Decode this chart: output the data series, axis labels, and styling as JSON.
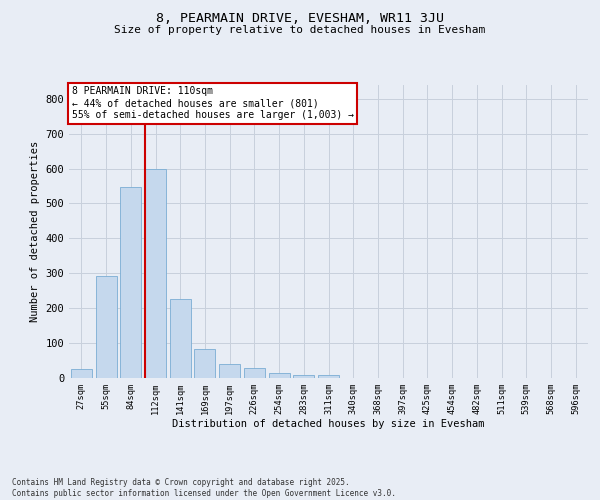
{
  "title1": "8, PEARMAIN DRIVE, EVESHAM, WR11 3JU",
  "title2": "Size of property relative to detached houses in Evesham",
  "xlabel": "Distribution of detached houses by size in Evesham",
  "ylabel": "Number of detached properties",
  "categories": [
    "27sqm",
    "55sqm",
    "84sqm",
    "112sqm",
    "141sqm",
    "169sqm",
    "197sqm",
    "226sqm",
    "254sqm",
    "283sqm",
    "311sqm",
    "340sqm",
    "368sqm",
    "397sqm",
    "425sqm",
    "454sqm",
    "482sqm",
    "511sqm",
    "539sqm",
    "568sqm",
    "596sqm"
  ],
  "values": [
    25,
    292,
    547,
    600,
    225,
    83,
    38,
    27,
    12,
    8,
    7,
    0,
    0,
    0,
    0,
    0,
    0,
    0,
    0,
    0,
    0
  ],
  "bar_color": "#c5d8ed",
  "bar_edge_color": "#7aadd4",
  "vline_index": 3,
  "vline_color": "#cc0000",
  "annotation_text": "8 PEARMAIN DRIVE: 110sqm\n← 44% of detached houses are smaller (801)\n55% of semi-detached houses are larger (1,003) →",
  "ylim": [
    0,
    840
  ],
  "yticks": [
    0,
    100,
    200,
    300,
    400,
    500,
    600,
    700,
    800
  ],
  "grid_color": "#c8d0dc",
  "background_color": "#e8edf5",
  "footnote": "Contains HM Land Registry data © Crown copyright and database right 2025.\nContains public sector information licensed under the Open Government Licence v3.0."
}
